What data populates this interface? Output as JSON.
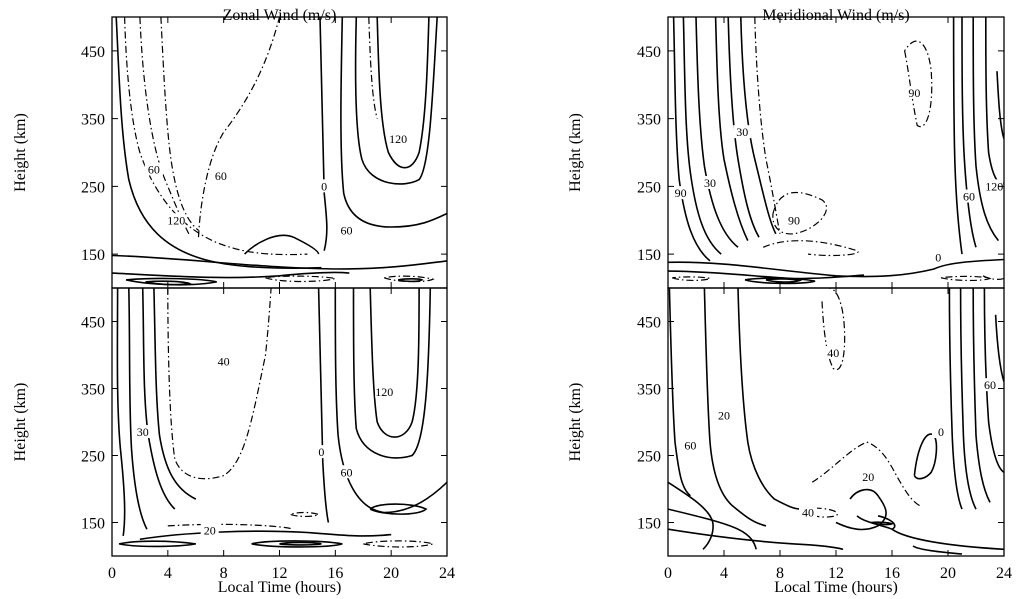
{
  "chart_data": [
    {
      "type": "contour",
      "title": "Zonal Wind (m/s)",
      "xlabel": "",
      "ylabel": "Height (km)",
      "xlim": [
        0,
        24
      ],
      "ylim": [
        100,
        500
      ],
      "x_ticks": [],
      "y_ticks": [
        150,
        250,
        350,
        450
      ],
      "grid": false,
      "contour_labels": [
        {
          "text": "60",
          "x": 3,
          "y": 275
        },
        {
          "text": "120",
          "x": 4.6,
          "y": 200
        },
        {
          "text": "60",
          "x": 7.8,
          "y": 265
        },
        {
          "text": "0",
          "x": 15.2,
          "y": 250
        },
        {
          "text": "60",
          "x": 16.8,
          "y": 185
        },
        {
          "text": "120",
          "x": 20.5,
          "y": 320
        }
      ]
    },
    {
      "type": "contour",
      "title": "",
      "xlabel": "Local Time (hours)",
      "ylabel": "Height (km)",
      "xlim": [
        0,
        24
      ],
      "ylim": [
        100,
        500
      ],
      "x_ticks": [
        0,
        4,
        8,
        12,
        16,
        20,
        24
      ],
      "y_ticks": [
        150,
        250,
        350,
        450
      ],
      "grid": false,
      "contour_labels": [
        {
          "text": "30",
          "x": 2.2,
          "y": 285
        },
        {
          "text": "40",
          "x": 8,
          "y": 390
        },
        {
          "text": "0",
          "x": 15,
          "y": 255
        },
        {
          "text": "60",
          "x": 16.8,
          "y": 225
        },
        {
          "text": "120",
          "x": 19.5,
          "y": 345
        },
        {
          "text": "20",
          "x": 7,
          "y": 138
        }
      ]
    },
    {
      "type": "contour",
      "title": "Meridional Wind (m/s)",
      "xlabel": "",
      "ylabel": "Height (km)",
      "xlim": [
        0,
        24
      ],
      "ylim": [
        100,
        500
      ],
      "x_ticks": [],
      "y_ticks": [
        150,
        250,
        350,
        450
      ],
      "grid": false,
      "contour_labels": [
        {
          "text": "90",
          "x": 17.6,
          "y": 388
        },
        {
          "text": "30",
          "x": 5.3,
          "y": 330
        },
        {
          "text": "30",
          "x": 3,
          "y": 255
        },
        {
          "text": "90",
          "x": 0.9,
          "y": 240
        },
        {
          "text": "90",
          "x": 9,
          "y": 200
        },
        {
          "text": "0",
          "x": 19.3,
          "y": 145
        },
        {
          "text": "60",
          "x": 21.5,
          "y": 235
        },
        {
          "text": "120",
          "x": 23.3,
          "y": 250
        }
      ]
    },
    {
      "type": "contour",
      "title": "",
      "xlabel": "Local Time (hours)",
      "ylabel": "Height (km)",
      "xlim": [
        0,
        24
      ],
      "ylim": [
        100,
        500
      ],
      "x_ticks": [
        0,
        4,
        8,
        12,
        16,
        20,
        24
      ],
      "y_ticks": [
        150,
        250,
        350,
        450
      ],
      "grid": false,
      "contour_labels": [
        {
          "text": "40",
          "x": 11.8,
          "y": 403
        },
        {
          "text": "20",
          "x": 4,
          "y": 310
        },
        {
          "text": "60",
          "x": 1.6,
          "y": 265
        },
        {
          "text": "20",
          "x": 14.3,
          "y": 218
        },
        {
          "text": "40",
          "x": 10,
          "y": 165
        },
        {
          "text": "0",
          "x": 19.5,
          "y": 285
        },
        {
          "text": "60",
          "x": 23,
          "y": 355
        }
      ]
    }
  ]
}
